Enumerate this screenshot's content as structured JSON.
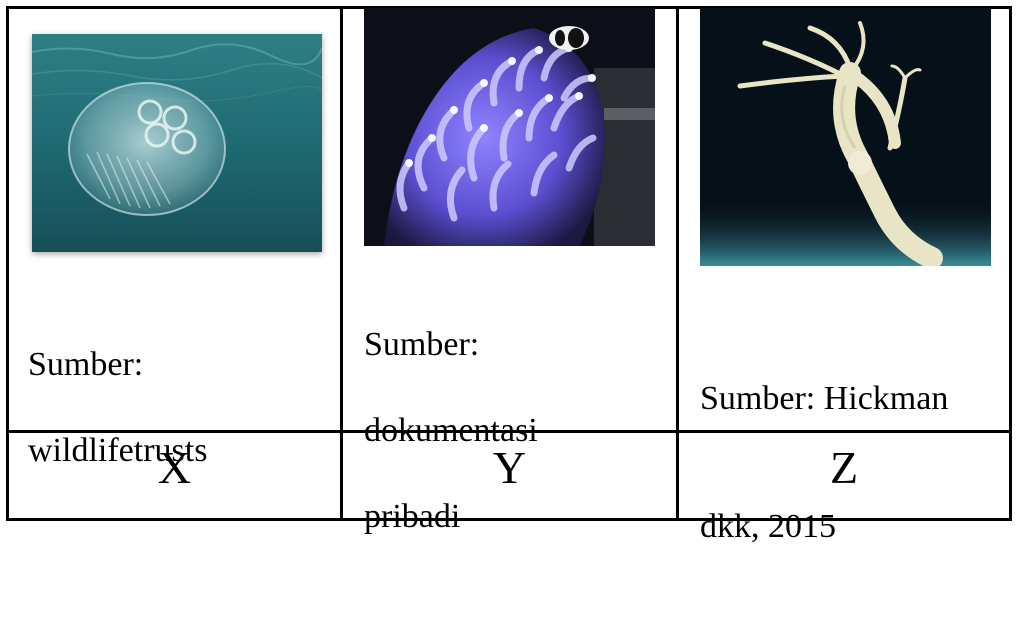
{
  "columns": [
    {
      "label": "X",
      "caption_line1": "Sumber:",
      "caption_line2": "wildlifetrusts",
      "caption_line3": "",
      "image_subject": "jellyfish-photo"
    },
    {
      "label": "Y",
      "caption_line1": "Sumber:",
      "caption_line2": "dokumentasi",
      "caption_line3": "pribadi",
      "image_subject": "sea-anemone-photo"
    },
    {
      "label": "Z",
      "caption_line1": "Sumber: Hickman",
      "caption_line2": "dkk, 2015",
      "caption_line3": "",
      "image_subject": "hydra-photo"
    }
  ],
  "colors": {
    "border": "#000000",
    "sea_teal": "#1f6f78",
    "anemone_purple": "#7b6cf0",
    "hydra_dark": "#061018"
  }
}
